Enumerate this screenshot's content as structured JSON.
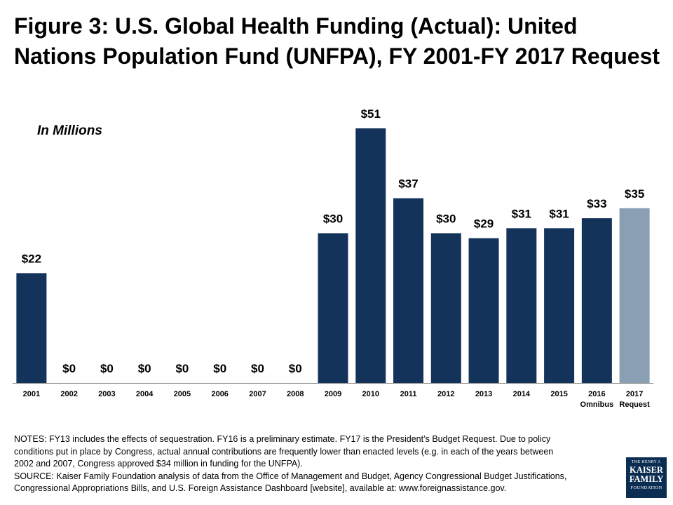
{
  "title": {
    "line1": "Figure 3: U.S. Global Health Funding (Actual): United",
    "line2": "Nations Population Fund (UNFPA), FY 2001-FY 2017 Request"
  },
  "units_label": "In Millions",
  "colors": {
    "actual": "#14335a",
    "request": "#8a9fb3"
  },
  "chart_data": {
    "type": "bar",
    "title": "Figure 3: U.S. Global Health Funding (Actual): United Nations Population Fund (UNFPA), FY 2001-FY 2017 Request",
    "ylabel": "In Millions",
    "categories": [
      "2001",
      "2002",
      "2003",
      "2004",
      "2005",
      "2006",
      "2007",
      "2008",
      "2009",
      "2010",
      "2011",
      "2012",
      "2013",
      "2014",
      "2015",
      "2016",
      "2017"
    ],
    "category_sublabels": [
      "",
      "",
      "",
      "",
      "",
      "",
      "",
      "",
      "",
      "",
      "",
      "",
      "",
      "",
      "",
      "Omnibus",
      "Request"
    ],
    "values": [
      22,
      0,
      0,
      0,
      0,
      0,
      0,
      0,
      30,
      51,
      37,
      30,
      29,
      31,
      31,
      33,
      35
    ],
    "data_labels": [
      "$22",
      "$0",
      "$0",
      "$0",
      "$0",
      "$0",
      "$0",
      "$0",
      "$30",
      "$51",
      "$37",
      "$30",
      "$29",
      "$31",
      "$31",
      "$33",
      "$35"
    ],
    "highlight_last": true,
    "ylim": [
      0,
      51
    ],
    "grid": false,
    "legend": "none"
  },
  "notes": {
    "line1": "NOTES: FY13 includes the effects of sequestration. FY16 is a preliminary estimate. FY17 is the President’s Budget Request. Due to policy",
    "line2": "conditions put in place by Congress, actual annual contributions are frequently lower than enacted levels (e.g. in each of the years between",
    "line3": "2002 and 2007, Congress approved $34 million in funding for the UNFPA).",
    "line4": "SOURCE: Kaiser Family Foundation analysis of data from the Office of Management and Budget, Agency Congressional Budget Justifications,",
    "line5": "Congressional Appropriations Bills, and U.S. Foreign Assistance Dashboard [website], available at: www.foreignassistance.gov."
  },
  "logo": {
    "line1": "THE HENRY J.",
    "line2": "KAISER",
    "line3": "FAMILY",
    "line4": "FOUNDATION"
  }
}
